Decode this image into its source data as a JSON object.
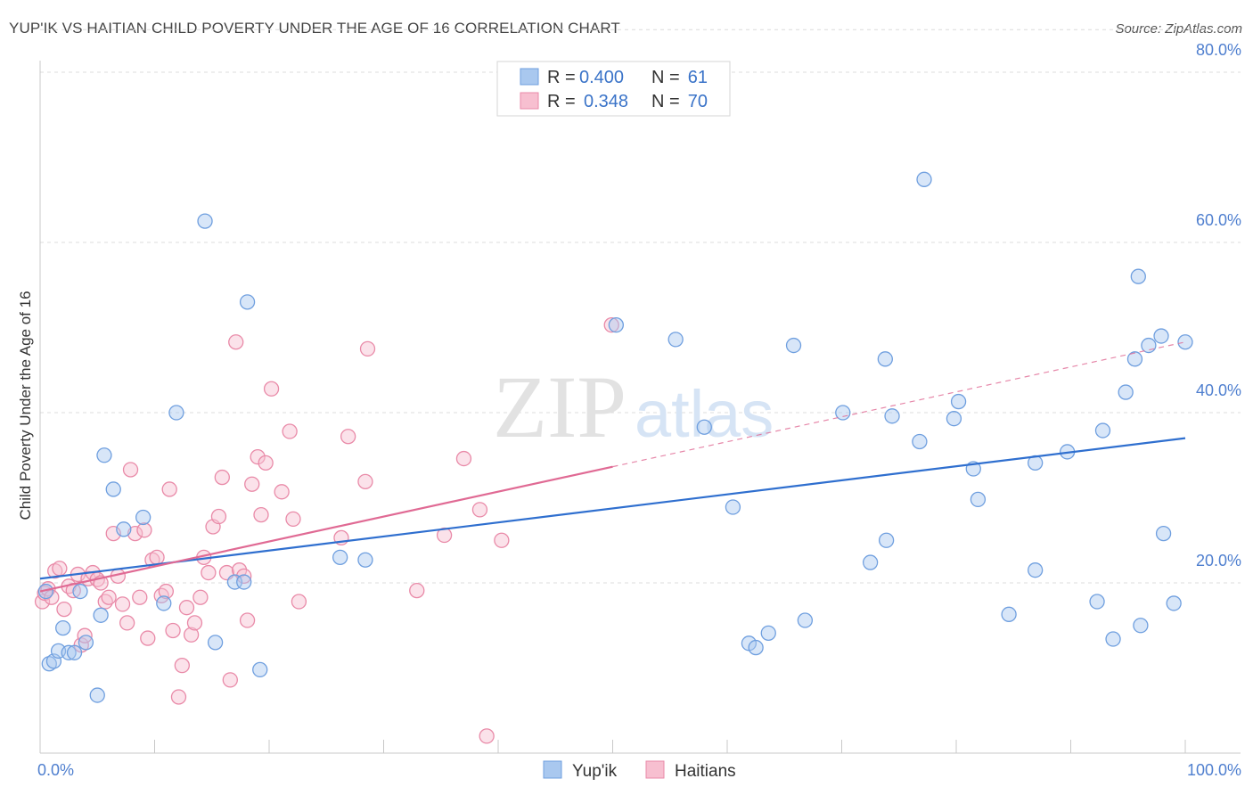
{
  "title": "YUP'IK VS HAITIAN CHILD POVERTY UNDER THE AGE OF 16 CORRELATION CHART",
  "source": "Source: ZipAtlas.com",
  "watermark": {
    "zip": "ZIP",
    "atlas": "atlas"
  },
  "legend_top": [
    {
      "r_label": "R =",
      "r_value": "0.400",
      "n_label": "N =",
      "n_value": "61",
      "color": "#a9c8ef",
      "stroke": "#6f9fdf"
    },
    {
      "r_label": "R =",
      "r_value": "0.348",
      "n_label": "N =",
      "n_value": "70",
      "color": "#f7bfd0",
      "stroke": "#e98aa8"
    }
  ],
  "chart_data": {
    "type": "scatter",
    "xlabel": "",
    "ylabel": "Child Poverty Under the Age of 16",
    "xlim": [
      0,
      100
    ],
    "ylim": [
      0,
      85
    ],
    "x_tick_labels": [
      "0.0%",
      "100.0%"
    ],
    "y_ticks": [
      20,
      40,
      60,
      80
    ],
    "y_tick_labels": [
      "20.0%",
      "40.0%",
      "60.0%",
      "80.0%"
    ],
    "grid": true,
    "legend_position": "bottom-center",
    "series": [
      {
        "name": "Yup'ik",
        "color": "#a9c8ef",
        "stroke": "#6f9fdf",
        "trend_color": "#2f6fcf",
        "trend": {
          "x0": 0,
          "y0": 20.5,
          "x1": 100,
          "y1": 37.0,
          "dashed_from": null
        },
        "points": [
          [
            0.5,
            19.0
          ],
          [
            0.8,
            10.5
          ],
          [
            1.2,
            10.8
          ],
          [
            1.6,
            12.0
          ],
          [
            2.0,
            14.7
          ],
          [
            2.5,
            11.8
          ],
          [
            3.0,
            11.8
          ],
          [
            3.5,
            19.0
          ],
          [
            4.0,
            13.0
          ],
          [
            5.0,
            6.8
          ],
          [
            5.3,
            16.2
          ],
          [
            5.6,
            35.0
          ],
          [
            6.4,
            31.0
          ],
          [
            7.3,
            26.3
          ],
          [
            9.0,
            27.7
          ],
          [
            10.8,
            17.6
          ],
          [
            11.9,
            40.0
          ],
          [
            14.4,
            62.5
          ],
          [
            15.3,
            13.0
          ],
          [
            17.0,
            20.1
          ],
          [
            17.8,
            20.1
          ],
          [
            18.1,
            53.0
          ],
          [
            19.2,
            9.8
          ],
          [
            26.2,
            23.0
          ],
          [
            28.4,
            22.7
          ],
          [
            50.3,
            50.3
          ],
          [
            55.5,
            48.6
          ],
          [
            58.0,
            38.3
          ],
          [
            60.5,
            28.9
          ],
          [
            61.9,
            12.9
          ],
          [
            62.5,
            12.4
          ],
          [
            63.6,
            14.1
          ],
          [
            65.8,
            47.9
          ],
          [
            66.8,
            15.6
          ],
          [
            70.1,
            40.0
          ],
          [
            72.5,
            22.4
          ],
          [
            73.8,
            46.3
          ],
          [
            73.9,
            25.0
          ],
          [
            74.4,
            39.6
          ],
          [
            76.8,
            36.6
          ],
          [
            77.2,
            67.4
          ],
          [
            79.8,
            39.3
          ],
          [
            80.2,
            41.3
          ],
          [
            81.5,
            33.4
          ],
          [
            81.9,
            29.8
          ],
          [
            84.6,
            16.3
          ],
          [
            86.9,
            21.5
          ],
          [
            86.9,
            34.1
          ],
          [
            89.7,
            35.4
          ],
          [
            92.3,
            17.8
          ],
          [
            92.8,
            37.9
          ],
          [
            93.7,
            13.4
          ],
          [
            94.8,
            42.4
          ],
          [
            95.6,
            46.3
          ],
          [
            95.9,
            56.0
          ],
          [
            96.1,
            15.0
          ],
          [
            96.8,
            47.9
          ],
          [
            97.9,
            49.0
          ],
          [
            98.1,
            25.8
          ],
          [
            99.0,
            17.6
          ],
          [
            100.0,
            48.3
          ]
        ]
      },
      {
        "name": "Haitians",
        "color": "#f7bfd0",
        "stroke": "#e98aa8",
        "trend_color": "#e06a94",
        "trend": {
          "x0": 0,
          "y0": 19.0,
          "x1": 100,
          "y1": 48.3,
          "dashed_from": 50
        },
        "points": [
          [
            0.2,
            17.8
          ],
          [
            0.4,
            18.8
          ],
          [
            0.7,
            19.3
          ],
          [
            1.0,
            18.3
          ],
          [
            1.3,
            21.4
          ],
          [
            1.7,
            21.7
          ],
          [
            2.1,
            16.9
          ],
          [
            2.5,
            19.6
          ],
          [
            2.9,
            19.1
          ],
          [
            3.3,
            21.0
          ],
          [
            3.6,
            12.7
          ],
          [
            3.9,
            13.8
          ],
          [
            4.2,
            20.5
          ],
          [
            4.6,
            21.2
          ],
          [
            5.0,
            20.4
          ],
          [
            5.3,
            20.0
          ],
          [
            5.7,
            17.8
          ],
          [
            6.0,
            18.3
          ],
          [
            6.4,
            25.8
          ],
          [
            6.8,
            20.8
          ],
          [
            7.2,
            17.5
          ],
          [
            7.6,
            15.3
          ],
          [
            7.9,
            33.3
          ],
          [
            8.3,
            25.8
          ],
          [
            8.7,
            18.3
          ],
          [
            9.1,
            26.2
          ],
          [
            9.4,
            13.5
          ],
          [
            9.8,
            22.7
          ],
          [
            10.2,
            23.0
          ],
          [
            10.6,
            18.5
          ],
          [
            11.0,
            19.0
          ],
          [
            11.3,
            31.0
          ],
          [
            11.6,
            14.4
          ],
          [
            12.1,
            6.6
          ],
          [
            12.4,
            10.3
          ],
          [
            12.8,
            17.1
          ],
          [
            13.2,
            13.9
          ],
          [
            13.5,
            15.3
          ],
          [
            14.0,
            18.3
          ],
          [
            14.3,
            23.0
          ],
          [
            14.7,
            21.2
          ],
          [
            15.1,
            26.6
          ],
          [
            15.6,
            27.8
          ],
          [
            15.9,
            32.4
          ],
          [
            16.3,
            21.2
          ],
          [
            16.6,
            8.6
          ],
          [
            17.1,
            48.3
          ],
          [
            17.4,
            21.5
          ],
          [
            17.8,
            20.8
          ],
          [
            18.1,
            15.6
          ],
          [
            18.5,
            31.6
          ],
          [
            19.0,
            34.8
          ],
          [
            19.3,
            28.0
          ],
          [
            19.7,
            34.1
          ],
          [
            20.2,
            42.8
          ],
          [
            21.1,
            30.7
          ],
          [
            21.8,
            37.8
          ],
          [
            22.1,
            27.5
          ],
          [
            22.6,
            17.8
          ],
          [
            26.3,
            25.3
          ],
          [
            26.9,
            37.2
          ],
          [
            28.4,
            31.9
          ],
          [
            28.6,
            47.5
          ],
          [
            32.9,
            19.1
          ],
          [
            35.3,
            25.6
          ],
          [
            37.0,
            34.6
          ],
          [
            38.4,
            28.6
          ],
          [
            39.0,
            2.0
          ],
          [
            40.3,
            25.0
          ],
          [
            49.9,
            50.3
          ]
        ]
      }
    ]
  }
}
